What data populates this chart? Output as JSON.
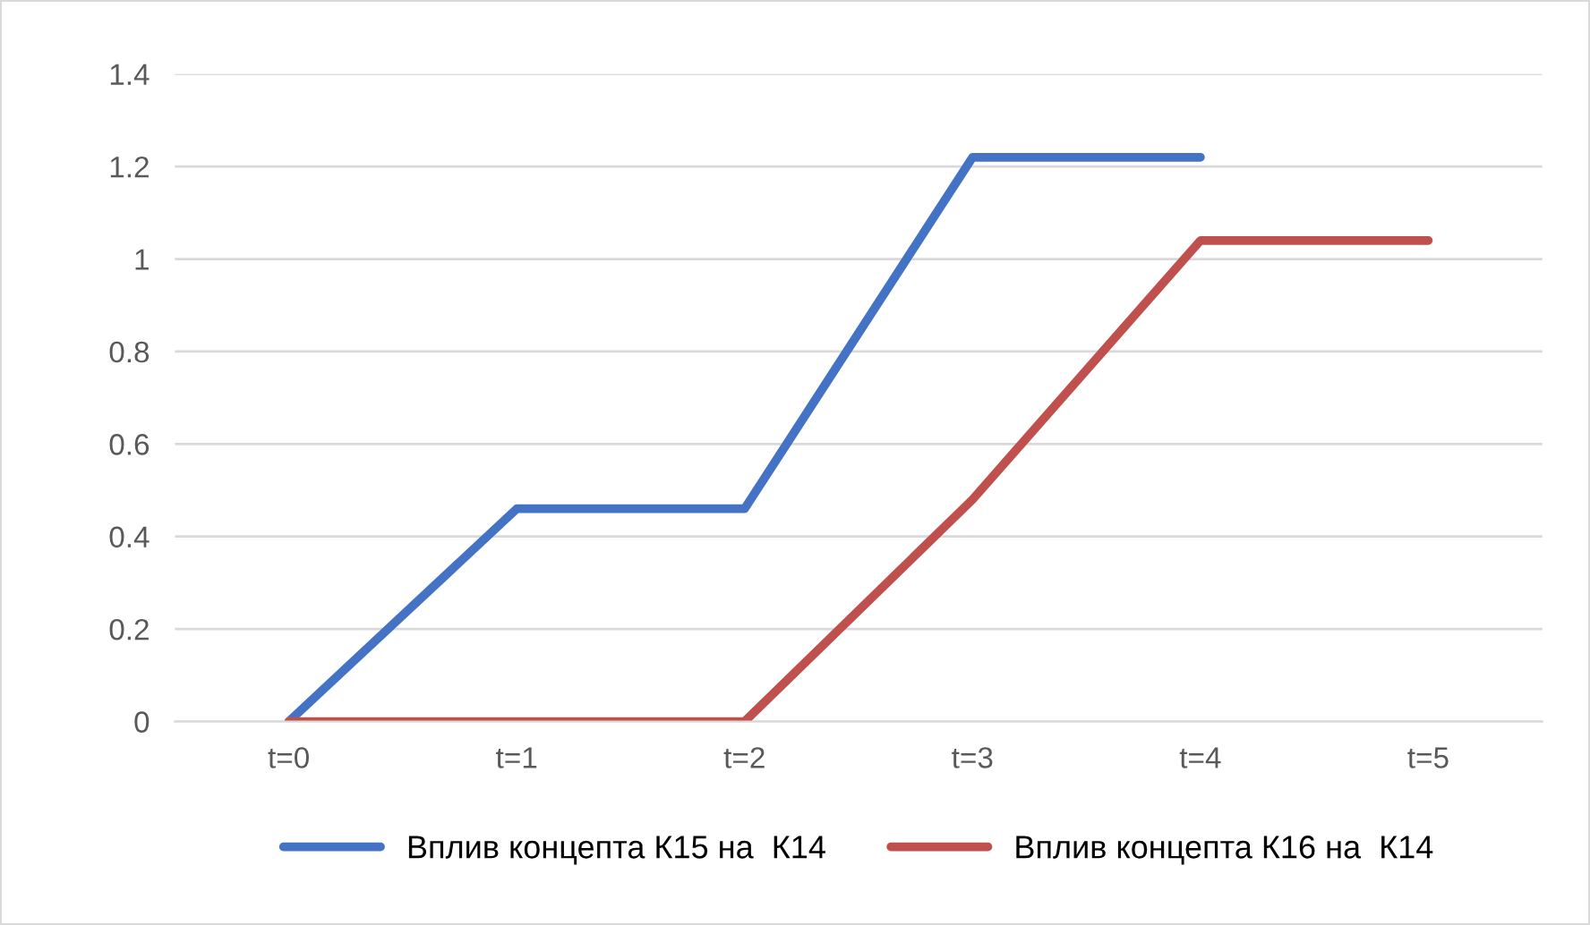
{
  "chart_data": {
    "type": "line",
    "categories": [
      "t=0",
      "t=1",
      "t=2",
      "t=3",
      "t=4",
      "t=5"
    ],
    "series": [
      {
        "name": "Вплив концепта К15 на  К14",
        "color": "#4472c4",
        "values": [
          0,
          0.46,
          0.46,
          1.22,
          1.22,
          null
        ]
      },
      {
        "name": "Вплив концепта К16 на  К14",
        "color": "#c0504d",
        "values": [
          0,
          0,
          0,
          0.48,
          1.04,
          1.04
        ]
      }
    ],
    "ylim": [
      0,
      1.4
    ],
    "yticks": [
      0,
      0.2,
      0.4,
      0.6,
      0.8,
      1,
      1.2,
      1.4
    ],
    "grid": "y",
    "legend": "bottom",
    "marker": "none",
    "line_style": "solid"
  }
}
